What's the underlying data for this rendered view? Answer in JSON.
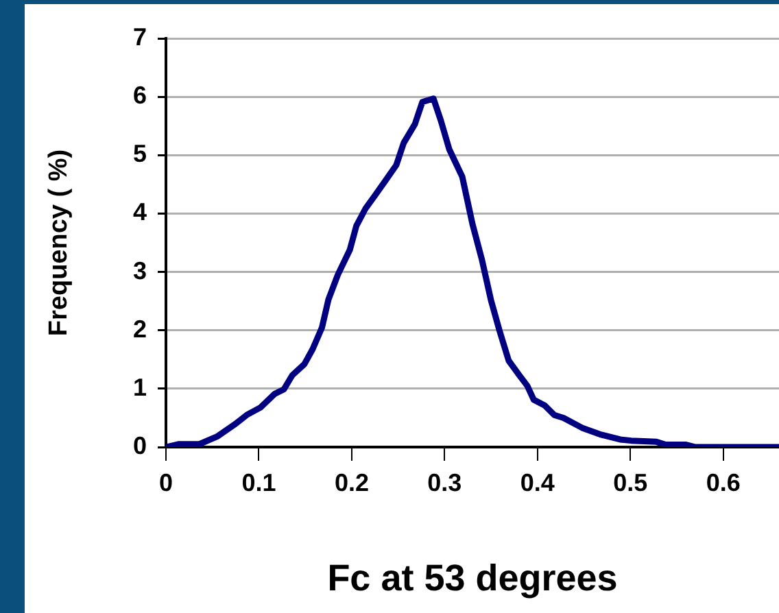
{
  "chart_data": {
    "type": "line",
    "xlabel": "Fc at 53 degrees",
    "ylabel": "Frequency ( %)",
    "x": [
      0,
      0.014,
      0.036,
      0.055,
      0.075,
      0.087,
      0.102,
      0.117,
      0.127,
      0.136,
      0.149,
      0.158,
      0.168,
      0.175,
      0.185,
      0.198,
      0.205,
      0.215,
      0.225,
      0.237,
      0.248,
      0.256,
      0.268,
      0.276,
      0.288,
      0.296,
      0.305,
      0.319,
      0.33,
      0.34,
      0.35,
      0.359,
      0.369,
      0.379,
      0.389,
      0.396,
      0.408,
      0.418,
      0.428,
      0.448,
      0.467,
      0.489,
      0.501,
      0.528,
      0.538,
      0.56,
      0.57,
      0.66
    ],
    "series": [
      {
        "color": "#000080",
        "values": [
          0,
          0.05,
          0.05,
          0.18,
          0.4,
          0.55,
          0.68,
          0.91,
          0.99,
          1.23,
          1.42,
          1.68,
          2.05,
          2.53,
          2.95,
          3.38,
          3.79,
          4.09,
          4.31,
          4.58,
          4.83,
          5.21,
          5.53,
          5.91,
          5.97,
          5.59,
          5.1,
          4.63,
          3.82,
          3.22,
          2.51,
          2.0,
          1.48,
          1.26,
          1.05,
          0.81,
          0.71,
          0.55,
          0.5,
          0.33,
          0.22,
          0.13,
          0.11,
          0.09,
          0.04,
          0.04,
          0,
          0
        ]
      }
    ],
    "xlim": [
      0,
      0.66
    ],
    "xticks": [
      0,
      0.1,
      0.2,
      0.3,
      0.4,
      0.5,
      0.6
    ],
    "ylim": [
      0,
      7
    ],
    "yticks": [
      0,
      1,
      2,
      3,
      4,
      5,
      6,
      7
    ],
    "grid": "y",
    "legend": false,
    "marker": "none",
    "line_style": "solid"
  }
}
